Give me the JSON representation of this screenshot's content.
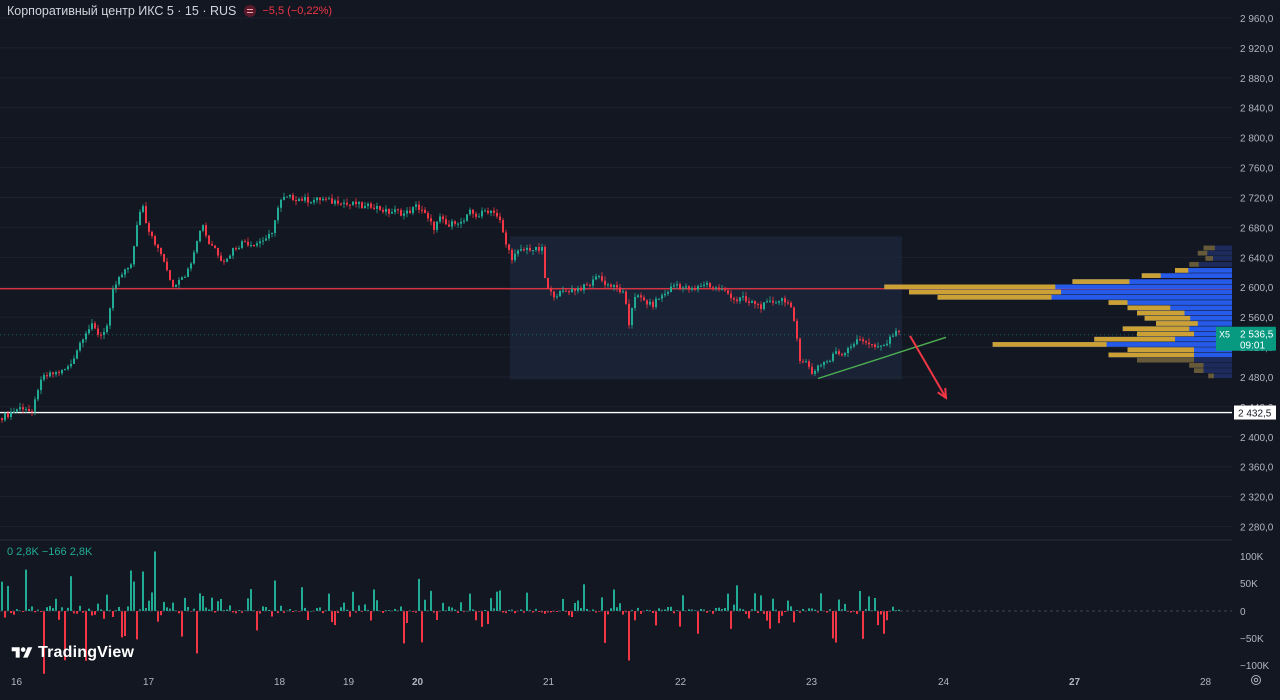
{
  "legend": {
    "symbol": "Корпоративный центр ИКС 5 · 15 · RUS",
    "change": "−5,5 (−0,22%)"
  },
  "volume_legend": "0  2,8K  −166  2,8K",
  "logo": {
    "text": "TradingView",
    "icon": "tradingview-logo-icon"
  },
  "settings_icon": "gear-icon",
  "colors": {
    "background": "#131722",
    "up": "#22ab94",
    "down": "#f23645",
    "grid": "#1e222d"
  },
  "chart_data": [
    {
      "type": "candlestick",
      "symbol_badge": "X5",
      "last_price": "2 536,5",
      "countdown": "09:01",
      "support_level": "2 432,5",
      "x_ticks": [
        "16",
        "17",
        "18",
        "19",
        "20",
        "21",
        "22",
        "23",
        "24",
        "27",
        "28"
      ],
      "y_ticks": [
        "2 960,0",
        "2 920,0",
        "2 880,0",
        "2 840,0",
        "2 800,0",
        "2 760,0",
        "2 720,0",
        "2 680,0",
        "2 640,0",
        "2 600,0",
        "2 560,0",
        "2 520,0",
        "2 480,0",
        "2 440,0",
        "2 400,0",
        "2 360,0",
        "2 320,0",
        "2 280,0"
      ],
      "ylim": [
        2265,
        2985
      ],
      "horizontal_lines": [
        {
          "price": 2598,
          "color": "#f23645"
        },
        {
          "price": 2432.5,
          "color": "#ffffff"
        }
      ],
      "close_path": [
        [
          0,
          2425
        ],
        [
          8,
          2430
        ],
        [
          18,
          2438
        ],
        [
          25,
          2440
        ],
        [
          32,
          2430
        ],
        [
          38,
          2465
        ],
        [
          44,
          2480
        ],
        [
          55,
          2485
        ],
        [
          63,
          2488
        ],
        [
          70,
          2495
        ],
        [
          78,
          2520
        ],
        [
          85,
          2540
        ],
        [
          92,
          2548
        ],
        [
          100,
          2535
        ],
        [
          108,
          2550
        ],
        [
          113,
          2595
        ],
        [
          118,
          2610
        ],
        [
          126,
          2622
        ],
        [
          132,
          2635
        ],
        [
          138,
          2690
        ],
        [
          142,
          2715
        ],
        [
          147,
          2682
        ],
        [
          152,
          2670
        ],
        [
          158,
          2650
        ],
        [
          163,
          2640
        ],
        [
          168,
          2615
        ],
        [
          174,
          2600
        ],
        [
          180,
          2615
        ],
        [
          187,
          2618
        ],
        [
          192,
          2640
        ],
        [
          197,
          2665
        ],
        [
          203,
          2685
        ],
        [
          208,
          2660
        ],
        [
          214,
          2655
        ],
        [
          220,
          2640
        ],
        [
          226,
          2635
        ],
        [
          232,
          2650
        ],
        [
          238,
          2655
        ],
        [
          244,
          2662
        ],
        [
          250,
          2658
        ],
        [
          258,
          2660
        ],
        [
          265,
          2665
        ],
        [
          272,
          2670
        ],
        [
          276,
          2700
        ],
        [
          282,
          2718
        ],
        [
          290,
          2720
        ],
        [
          300,
          2718
        ],
        [
          312,
          2716
        ],
        [
          322,
          2718
        ],
        [
          332,
          2714
        ],
        [
          340,
          2716
        ],
        [
          348,
          2710
        ],
        [
          356,
          2712
        ],
        [
          364,
          2706
        ],
        [
          372,
          2710
        ],
        [
          380,
          2705
        ],
        [
          388,
          2700
        ],
        [
          396,
          2702
        ],
        [
          404,
          2698
        ],
        [
          410,
          2702
        ],
        [
          416,
          2708
        ],
        [
          422,
          2704
        ],
        [
          428,
          2690
        ],
        [
          434,
          2680
        ],
        [
          440,
          2692
        ],
        [
          448,
          2680
        ],
        [
          456,
          2690
        ],
        [
          462,
          2685
        ],
        [
          470,
          2700
        ],
        [
          478,
          2695
        ],
        [
          486,
          2703
        ],
        [
          494,
          2702
        ],
        [
          500,
          2688
        ],
        [
          505,
          2660
        ],
        [
          512,
          2640
        ],
        [
          520,
          2648
        ],
        [
          528,
          2652
        ],
        [
          536,
          2650
        ],
        [
          542,
          2650
        ],
        [
          546,
          2600
        ],
        [
          552,
          2590
        ],
        [
          560,
          2592
        ],
        [
          568,
          2596
        ],
        [
          576,
          2598
        ],
        [
          584,
          2600
        ],
        [
          592,
          2605
        ],
        [
          597,
          2620
        ],
        [
          602,
          2608
        ],
        [
          610,
          2602
        ],
        [
          618,
          2598
        ],
        [
          624,
          2590
        ],
        [
          629,
          2550
        ],
        [
          634,
          2590
        ],
        [
          640,
          2585
        ],
        [
          646,
          2580
        ],
        [
          652,
          2575
        ],
        [
          658,
          2585
        ],
        [
          664,
          2590
        ],
        [
          670,
          2598
        ],
        [
          676,
          2605
        ],
        [
          682,
          2600
        ],
        [
          688,
          2598
        ],
        [
          694,
          2595
        ],
        [
          700,
          2602
        ],
        [
          706,
          2606
        ],
        [
          712,
          2600
        ],
        [
          718,
          2598
        ],
        [
          724,
          2595
        ],
        [
          730,
          2590
        ],
        [
          736,
          2582
        ],
        [
          742,
          2586
        ],
        [
          748,
          2578
        ],
        [
          754,
          2580
        ],
        [
          760,
          2574
        ],
        [
          768,
          2578
        ],
        [
          776,
          2582
        ],
        [
          784,
          2585
        ],
        [
          790,
          2575
        ],
        [
          796,
          2540
        ],
        [
          800,
          2505
        ],
        [
          806,
          2500
        ],
        [
          812,
          2485
        ],
        [
          818,
          2495
        ],
        [
          824,
          2500
        ],
        [
          830,
          2502
        ],
        [
          836,
          2515
        ],
        [
          842,
          2510
        ],
        [
          848,
          2520
        ],
        [
          854,
          2525
        ],
        [
          860,
          2530
        ],
        [
          866,
          2528
        ],
        [
          872,
          2522
        ],
        [
          878,
          2518
        ],
        [
          884,
          2522
        ],
        [
          890,
          2530
        ],
        [
          895,
          2545
        ],
        [
          900,
          2536.5
        ]
      ],
      "volume_delta": {
        "ylim": [
          -100000,
          100000
        ],
        "y_ticks": [
          "100K",
          "50K",
          "0",
          "−50K",
          "−100K"
        ]
      },
      "annotations": {
        "consolidation_box": {
          "x_from": 510,
          "x_to": 902,
          "price_from": 2477,
          "price_to": 2668
        },
        "trend_line": {
          "from": [
            818,
            2478
          ],
          "to": [
            946,
            2533
          ]
        },
        "arrow": {
          "from": [
            910,
            2535
          ],
          "to": [
            946,
            2452
          ]
        }
      },
      "volume_profile": {
        "value_area_color": "#2962ff",
        "poc_color": "#d4a52c",
        "outside_color": "#1e2f66"
      }
    }
  ]
}
